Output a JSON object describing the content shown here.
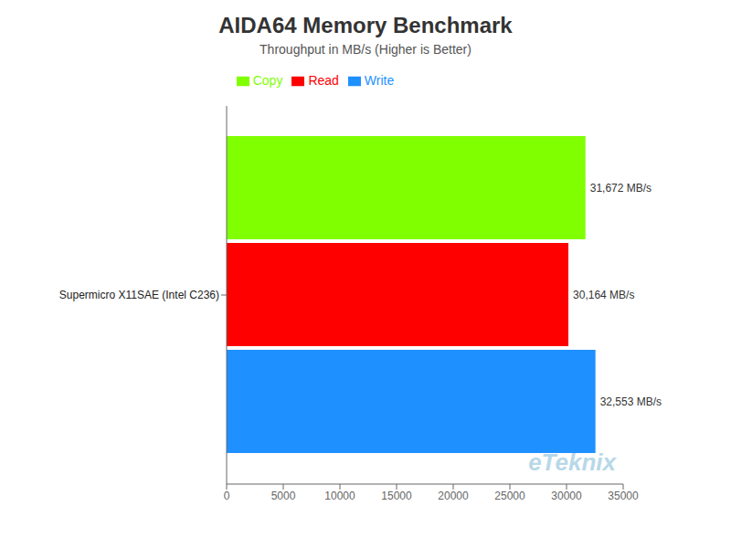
{
  "chart_data": {
    "type": "bar",
    "orientation": "horizontal",
    "title": "AIDA64 Memory Benchmark",
    "subtitle": "Throughput in MB/s (Higher is Better)",
    "categories": [
      "Supermicro X11SAE (Intel C236)"
    ],
    "series": [
      {
        "name": "Copy",
        "color": "#80FF00",
        "values": [
          31672
        ],
        "value_labels": [
          "31,672 MB/s"
        ]
      },
      {
        "name": "Read",
        "color": "#FF0000",
        "values": [
          30164
        ],
        "value_labels": [
          "30,164 MB/s"
        ]
      },
      {
        "name": "Write",
        "color": "#1E90FF",
        "values": [
          32553
        ],
        "value_labels": [
          "32,553 MB/s"
        ]
      }
    ],
    "xlim": [
      0,
      35000
    ],
    "xticks": [
      0,
      5000,
      10000,
      15000,
      20000,
      25000,
      30000,
      35000
    ],
    "data_labels": true,
    "grid": false,
    "annotations": [
      "eTeknix"
    ]
  }
}
